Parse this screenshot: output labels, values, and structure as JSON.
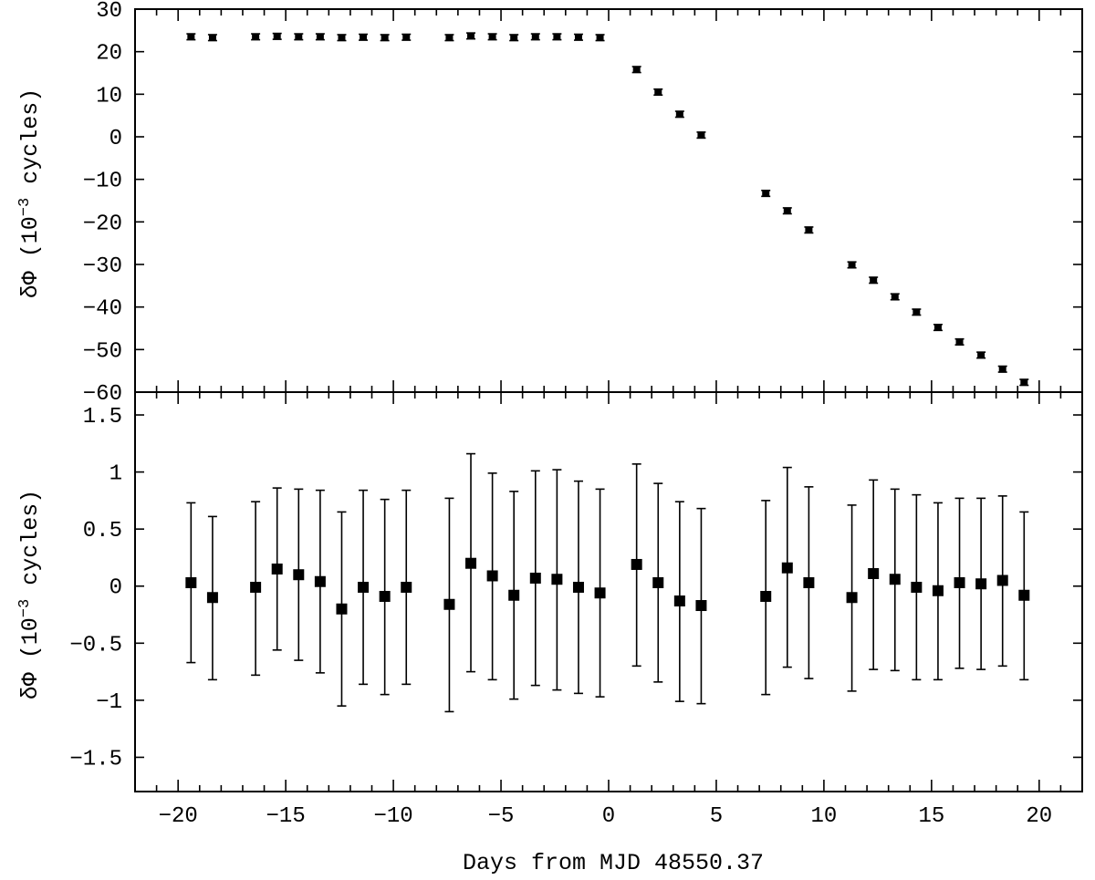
{
  "chart_data": [
    {
      "type": "scatter",
      "panel": "top",
      "ylabel": {
        "prefix": "δΦ (10",
        "sup": "−3",
        "suffix": " cycles)"
      },
      "ylim": [
        -60,
        30
      ],
      "ytick_values": [
        30,
        20,
        10,
        0,
        -10,
        -20,
        -30,
        -40,
        -50,
        -60
      ],
      "ytick_labels": [
        "30",
        "20",
        "10",
        "0",
        "−10",
        "−20",
        "−30",
        "−40",
        "−50",
        "−60"
      ],
      "xlim": [
        -22,
        22
      ],
      "marker": "small-square-with-errorbar",
      "series": [
        {
          "x": [
            -19.4,
            -18.4,
            -16.4,
            -15.4,
            -14.4,
            -13.4,
            -12.4,
            -11.4,
            -10.4,
            -9.4,
            -7.4,
            -6.4,
            -5.4,
            -4.4,
            -3.4,
            -2.4,
            -1.4,
            -0.4,
            1.3,
            2.3,
            3.3,
            4.3,
            7.3,
            8.3,
            9.3,
            11.3,
            12.3,
            13.3,
            14.3,
            15.3,
            16.3,
            17.3,
            18.3,
            19.3
          ],
          "y": [
            23.5,
            23.3,
            23.5,
            23.6,
            23.5,
            23.5,
            23.3,
            23.4,
            23.3,
            23.4,
            23.3,
            23.7,
            23.5,
            23.3,
            23.5,
            23.5,
            23.4,
            23.3,
            15.8,
            10.5,
            5.3,
            0.4,
            -13.3,
            -17.4,
            -21.9,
            -30.1,
            -33.7,
            -37.6,
            -41.2,
            -44.8,
            -48.2,
            -51.3,
            -54.6,
            -57.7
          ],
          "yerr": [
            0.7,
            0.7,
            0.7,
            0.7,
            0.7,
            0.7,
            0.7,
            0.7,
            0.7,
            0.7,
            0.7,
            0.7,
            0.7,
            0.7,
            0.7,
            0.7,
            0.7,
            0.7,
            0.7,
            0.7,
            0.7,
            0.7,
            0.7,
            0.7,
            0.7,
            0.7,
            0.7,
            0.7,
            0.7,
            0.7,
            0.7,
            0.7,
            0.7,
            0.7
          ]
        }
      ]
    },
    {
      "type": "scatter",
      "panel": "bottom",
      "ylabel": {
        "prefix": "δΦ (10",
        "sup": "−3",
        "suffix": " cycles)"
      },
      "ylim": [
        -1.8,
        1.7
      ],
      "ytick_values": [
        1.5,
        1,
        0.5,
        0,
        -0.5,
        -1,
        -1.5
      ],
      "ytick_labels": [
        "1.5",
        "1",
        "0.5",
        "0",
        "−0.5",
        "−1",
        "−1.5"
      ],
      "xlim": [
        -22,
        22
      ],
      "xlabel": "Days from MJD 48550.37",
      "xtick_values": [
        -20,
        -15,
        -10,
        -5,
        0,
        5,
        10,
        15,
        20
      ],
      "xtick_labels": [
        "−20",
        "−15",
        "−10",
        "−5",
        "0",
        "5",
        "10",
        "15",
        "20"
      ],
      "marker": "filled-square-with-errorbar",
      "series": [
        {
          "x": [
            -19.4,
            -18.4,
            -16.4,
            -15.4,
            -14.4,
            -13.4,
            -12.4,
            -11.4,
            -10.4,
            -9.4,
            -7.4,
            -6.4,
            -5.4,
            -4.4,
            -3.4,
            -2.4,
            -1.4,
            -0.4,
            1.3,
            2.3,
            3.3,
            4.3,
            7.3,
            8.3,
            9.3,
            11.3,
            12.3,
            13.3,
            14.3,
            15.3,
            16.3,
            17.3,
            18.3,
            19.3
          ],
          "y": [
            0.03,
            -0.1,
            -0.01,
            0.15,
            0.1,
            0.04,
            -0.2,
            -0.01,
            -0.09,
            -0.01,
            -0.16,
            0.2,
            0.09,
            -0.08,
            0.07,
            0.06,
            -0.01,
            -0.06,
            0.19,
            0.03,
            -0.13,
            -0.17,
            -0.09,
            0.16,
            0.03,
            -0.1,
            0.11,
            0.06,
            -0.01,
            -0.04,
            0.03,
            0.02,
            0.05,
            -0.08
          ],
          "ylo": [
            -0.67,
            -0.82,
            -0.78,
            -0.56,
            -0.65,
            -0.76,
            -1.05,
            -0.86,
            -0.95,
            -0.86,
            -1.1,
            -0.75,
            -0.82,
            -0.99,
            -0.87,
            -0.91,
            -0.94,
            -0.97,
            -0.7,
            -0.84,
            -1.01,
            -1.03,
            -0.95,
            -0.71,
            -0.81,
            -0.92,
            -0.73,
            -0.74,
            -0.82,
            -0.82,
            -0.72,
            -0.73,
            -0.7,
            -0.82
          ],
          "yhi": [
            0.73,
            0.61,
            0.74,
            0.86,
            0.85,
            0.84,
            0.65,
            0.84,
            0.76,
            0.84,
            0.77,
            1.16,
            0.99,
            0.83,
            1.01,
            1.02,
            0.92,
            0.85,
            1.07,
            0.9,
            0.74,
            0.68,
            0.75,
            1.04,
            0.87,
            0.71,
            0.93,
            0.85,
            0.8,
            0.73,
            0.77,
            0.77,
            0.79,
            0.65
          ]
        }
      ]
    }
  ]
}
